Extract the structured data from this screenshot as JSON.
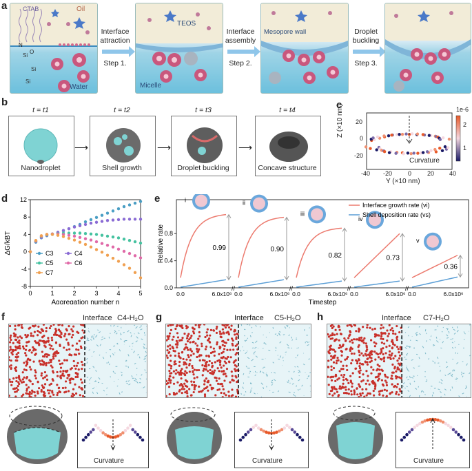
{
  "panels": {
    "a": {
      "label": "a",
      "labels": {
        "ctab": "CTAB",
        "oil": "Oil",
        "water": "Water",
        "teos": "TEOS",
        "micelle": "Micelle",
        "mesopore": "Mesopore wall",
        "n": "N",
        "o": "O",
        "si": "Si"
      },
      "steps": [
        {
          "title": "Interface attraction",
          "step": "Step 1."
        },
        {
          "title": "Interface assembly",
          "step": "Step 2."
        },
        {
          "title": "Droplet buckling",
          "step": "Step 3."
        }
      ]
    },
    "b": {
      "label": "b",
      "frames": [
        {
          "time": "t = t1",
          "caption": "Nanodroplet"
        },
        {
          "time": "t = t2",
          "caption": "Shell growth"
        },
        {
          "time": "t = t3",
          "caption": "Droplet buckling"
        },
        {
          "time": "t = t4",
          "caption": "Concave structure"
        }
      ]
    },
    "c": {
      "label": "c",
      "xlabel": "Y (×10 nm)",
      "ylabel": "Z (×10 nm)",
      "inner": "Curvature",
      "colorbar": {
        "exp": "1e-6",
        "ticks": [
          "2",
          "1"
        ]
      },
      "xticks": [
        "-40",
        "-20",
        "0",
        "20",
        "40"
      ],
      "yticks": [
        "20",
        "0",
        "-20"
      ]
    },
    "d": {
      "label": "d"
    },
    "e": {
      "label": "e"
    },
    "f": {
      "label": "f",
      "interface": "Interface",
      "tag": "C4-H₂O",
      "curv": "Curvature"
    },
    "g": {
      "label": "g",
      "interface": "Interface",
      "tag": "C5-H₂O",
      "curv": "Curvature"
    },
    "h": {
      "label": "h",
      "interface": "Interface",
      "tag": "C7-H₂O",
      "curv": "Curvature"
    }
  },
  "colors": {
    "teal": "#8fd8d8",
    "red": "#e8665a",
    "blue": "#5a9ed6",
    "navy": "#1a1a66"
  },
  "chart_data": [
    {
      "id": "d",
      "type": "line",
      "xlabel": "Aggregation number n",
      "ylabel": "ΔG/kBT",
      "xlim": [
        0,
        5
      ],
      "ylim": [
        -8,
        12
      ],
      "xticks": [
        "0",
        "1",
        "2",
        "3",
        "4",
        "5"
      ],
      "yticks": [
        "-8",
        "-4",
        "0",
        "4",
        "8",
        "12"
      ],
      "x": [
        0,
        0.25,
        0.5,
        0.75,
        1,
        1.25,
        1.5,
        1.75,
        2,
        2.25,
        2.5,
        2.75,
        3,
        3.25,
        3.5,
        3.75,
        4,
        4.25,
        4.5,
        4.75,
        5
      ],
      "series": [
        {
          "name": "C3",
          "color": "#4a9ec4",
          "values": [
            0,
            2.2,
            3.2,
            3.7,
            4.0,
            4.4,
            4.8,
            5.3,
            5.8,
            6.3,
            6.9,
            7.4,
            7.9,
            8.4,
            8.9,
            9.4,
            9.9,
            10.4,
            10.8,
            11.2,
            11.6
          ]
        },
        {
          "name": "C4",
          "color": "#8a6bd4",
          "values": [
            0,
            2.3,
            3.3,
            3.8,
            4.1,
            4.5,
            4.9,
            5.3,
            5.7,
            6.0,
            6.3,
            6.6,
            6.8,
            7.0,
            7.2,
            7.3,
            7.4,
            7.5,
            7.5,
            7.5,
            7.5
          ]
        },
        {
          "name": "C5",
          "color": "#45c2a0",
          "values": [
            0,
            2.4,
            3.5,
            3.9,
            4.1,
            4.2,
            4.3,
            4.3,
            4.3,
            4.3,
            4.2,
            4.1,
            4.0,
            3.8,
            3.6,
            3.4,
            3.2,
            2.9,
            2.6,
            2.3,
            2.0
          ]
        },
        {
          "name": "C6",
          "color": "#e06aa8",
          "values": [
            0,
            2.5,
            3.6,
            4.0,
            4.1,
            4.1,
            4.0,
            3.8,
            3.6,
            3.3,
            3.0,
            2.7,
            2.3,
            1.9,
            1.5,
            1.1,
            0.6,
            0.1,
            -0.4,
            -0.9,
            -1.4
          ]
        },
        {
          "name": "C7",
          "color": "#f0a050",
          "values": [
            0,
            2.6,
            3.7,
            4.0,
            4.0,
            3.8,
            3.5,
            3.1,
            2.7,
            2.2,
            1.7,
            1.1,
            0.5,
            -0.1,
            -0.8,
            -1.5,
            -2.2,
            -3.0,
            -3.8,
            -4.8,
            -6.0
          ]
        }
      ]
    },
    {
      "id": "e",
      "type": "line",
      "xlabel": "Timestep",
      "ylabel": "Relative rate",
      "yticks": [
        "0.0",
        "0.4",
        "0.8"
      ],
      "xtick0": "0.0",
      "xtick1": "6.0x10⁶",
      "legend": [
        {
          "name": "Interface growth rate (vi)",
          "color": "#ec7a6e"
        },
        {
          "name": "Shell deposition rate (vs)",
          "color": "#5a9ed6"
        }
      ],
      "segments": [
        {
          "roman": "i",
          "ratio": 0.99,
          "growth_end": 1.08,
          "deposit_end": 0.12
        },
        {
          "roman": "ii",
          "ratio": 0.9,
          "growth_end": 1.04,
          "deposit_end": 0.12
        },
        {
          "roman": "iii",
          "ratio": 0.82,
          "growth_end": 0.88,
          "deposit_end": 0.1
        },
        {
          "roman": "iv",
          "ratio": 0.73,
          "growth_end": 0.8,
          "deposit_end": 0.1
        },
        {
          "roman": "v",
          "ratio": 0.36,
          "growth_end": 0.48,
          "deposit_end": 0.16
        }
      ]
    }
  ]
}
